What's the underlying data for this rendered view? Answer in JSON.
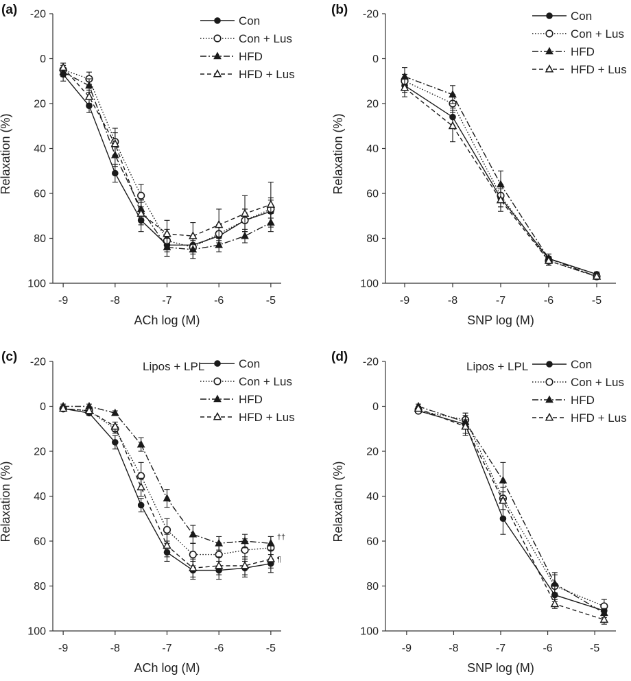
{
  "chart_data": [
    {
      "type": "line",
      "panel_label": "(a)",
      "xlabel": "ACh log (M)",
      "ylabel": "Relaxation (%)",
      "ylim": [
        -20,
        100
      ],
      "yticks": [
        "-20",
        "0",
        "20",
        "40",
        "60",
        "80",
        "100"
      ],
      "xlim": [
        -9.2,
        -4.8
      ],
      "xticks": [
        "-9",
        "-8",
        "-7",
        "-6",
        "-5"
      ],
      "annotation": "",
      "x": [
        -9,
        -8.5,
        -8,
        -7.5,
        -7,
        -6.5,
        -6,
        -5.5,
        -5
      ],
      "series": [
        {
          "name": "Con",
          "values": [
            7,
            21,
            51,
            72,
            83,
            83,
            79,
            72,
            68
          ],
          "errors": [
            3,
            3,
            4,
            5,
            5,
            4,
            5,
            5,
            6
          ]
        },
        {
          "name": "Con + Lus",
          "values": [
            5,
            9,
            37,
            61,
            81,
            84,
            78,
            72,
            67
          ],
          "errors": [
            2,
            3,
            6,
            5,
            5,
            5,
            4,
            5,
            4
          ]
        },
        {
          "name": "HFD",
          "values": [
            6,
            12,
            43,
            67,
            84,
            85,
            83,
            79,
            73
          ],
          "errors": [
            2,
            3,
            5,
            4,
            4,
            4,
            3,
            3,
            4
          ]
        },
        {
          "name": "HFD + Lus",
          "values": [
            4,
            17,
            38,
            69,
            78,
            79,
            74,
            69,
            65
          ],
          "errors": [
            2,
            3,
            5,
            5,
            6,
            6,
            7,
            8,
            10
          ]
        }
      ],
      "significance": []
    },
    {
      "type": "line",
      "panel_label": "(b)",
      "xlabel": "SNP log (M)",
      "ylabel": "Relaxation (%)",
      "ylim": [
        -20,
        100
      ],
      "yticks": [
        "-20",
        "0",
        "20",
        "40",
        "60",
        "80",
        "100"
      ],
      "xlim": [
        -9.4,
        -4.6
      ],
      "xticks": [
        "-9",
        "-8",
        "-7",
        "-6",
        "-5"
      ],
      "annotation": "",
      "x": [
        -9,
        -8,
        -7,
        -6,
        -5
      ],
      "series": [
        {
          "name": "Con",
          "values": [
            12,
            26,
            62,
            89,
            96
          ],
          "errors": [
            3,
            4,
            4,
            2,
            1
          ]
        },
        {
          "name": "Con + Lus",
          "values": [
            10,
            20,
            61,
            90,
            97
          ],
          "errors": [
            3,
            4,
            5,
            2,
            1
          ]
        },
        {
          "name": "HFD",
          "values": [
            8,
            16,
            56,
            89,
            97
          ],
          "errors": [
            4,
            4,
            6,
            2,
            1
          ]
        },
        {
          "name": "HFD + Lus",
          "values": [
            13,
            30,
            63,
            90,
            97
          ],
          "errors": [
            4,
            7,
            5,
            2,
            1
          ]
        }
      ],
      "significance": []
    },
    {
      "type": "line",
      "panel_label": "(c)",
      "xlabel": "ACh log (M)",
      "ylabel": "Relaxation (%)",
      "ylim": [
        -20,
        100
      ],
      "yticks": [
        "-20",
        "0",
        "20",
        "40",
        "60",
        "80",
        "100"
      ],
      "xlim": [
        -9.2,
        -4.8
      ],
      "xticks": [
        "-9",
        "-8",
        "-7",
        "-6",
        "-5"
      ],
      "annotation": "Lipos + LPL",
      "x": [
        -9,
        -8.5,
        -8,
        -7.5,
        -7,
        -6.5,
        -6,
        -5.5,
        -5
      ],
      "series": [
        {
          "name": "Con",
          "values": [
            1,
            3,
            16,
            44,
            65,
            73,
            73,
            72,
            70
          ],
          "errors": [
            1,
            1,
            3,
            3,
            4,
            4,
            4,
            4,
            4
          ]
        },
        {
          "name": "Con + Lus",
          "values": [
            1,
            2,
            10,
            31,
            55,
            66,
            66,
            64,
            63
          ],
          "errors": [
            1,
            1,
            2,
            6,
            5,
            5,
            5,
            5,
            5
          ]
        },
        {
          "name": "HFD",
          "values": [
            0,
            0,
            3,
            17,
            41,
            57,
            61,
            60,
            61
          ],
          "errors": [
            1,
            1,
            1,
            3,
            4,
            4,
            3,
            3,
            3
          ]
        },
        {
          "name": "HFD + Lus",
          "values": [
            1,
            2,
            9,
            36,
            62,
            72,
            71,
            71,
            68
          ],
          "errors": [
            1,
            1,
            2,
            4,
            5,
            4,
            4,
            4,
            4
          ]
        }
      ],
      "significance": [
        {
          "series": "HFD",
          "text": "††"
        },
        {
          "series": "HFD + Lus",
          "text": "¶"
        }
      ]
    },
    {
      "type": "line",
      "panel_label": "(d)",
      "xlabel": "SNP log (M)",
      "ylabel": "Relaxation (%)",
      "ylim": [
        -20,
        100
      ],
      "yticks": [
        "-20",
        "0",
        "20",
        "40",
        "60",
        "80",
        "100"
      ],
      "xlim": [
        -9.45,
        -4.55
      ],
      "xticks": [
        "-9",
        "-8",
        "-7",
        "-6",
        "-5"
      ],
      "annotation": "Lipos + LPL",
      "x": [
        -8.75,
        -7.75,
        -6.95,
        -5.85,
        -4.8
      ],
      "series": [
        {
          "name": "Con",
          "values": [
            2,
            8,
            50,
            84,
            91
          ],
          "errors": [
            1,
            5,
            7,
            3,
            2
          ]
        },
        {
          "name": "Con + Lus",
          "values": [
            2,
            6,
            41,
            80,
            89
          ],
          "errors": [
            1,
            3,
            5,
            6,
            3
          ]
        },
        {
          "name": "HFD",
          "values": [
            0,
            7,
            33,
            79,
            92
          ],
          "errors": [
            1,
            3,
            8,
            4,
            2
          ]
        },
        {
          "name": "HFD + Lus",
          "values": [
            1,
            9,
            42,
            88,
            95
          ],
          "errors": [
            1,
            3,
            4,
            2,
            2
          ]
        }
      ],
      "significance": []
    }
  ],
  "styles": {
    "line_color": "#1a1a1a",
    "Con": {
      "dash": "solid",
      "marker": "filled-circle"
    },
    "Con + Lus": {
      "dash": "dotted",
      "marker": "open-circle"
    },
    "HFD": {
      "dash": "dash-dot",
      "marker": "filled-triangle"
    },
    "HFD + Lus": {
      "dash": "dashed",
      "marker": "open-triangle"
    }
  }
}
